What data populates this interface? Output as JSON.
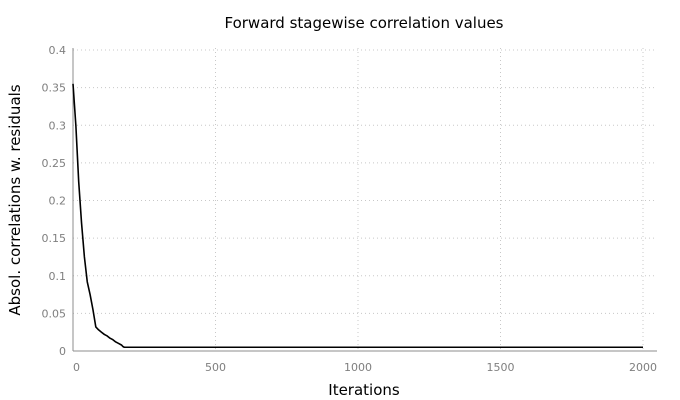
{
  "chart_data": {
    "type": "line",
    "title": "Forward stagewise correlation values",
    "xlabel": "Iterations",
    "ylabel": "Absol. correlations w. residuals",
    "xlim": [
      0,
      2000
    ],
    "ylim": [
      0,
      0.4
    ],
    "x_ticks": [
      0,
      500,
      1000,
      1500,
      2000
    ],
    "x_tick_labels": [
      "0",
      "500",
      "1000",
      "1500",
      "2000"
    ],
    "y_ticks": [
      0,
      0.05,
      0.1,
      0.15,
      0.2,
      0.25,
      0.3,
      0.35,
      0.4
    ],
    "y_tick_labels": [
      "0",
      "0.05",
      "0.1",
      "0.15",
      "0.2",
      "0.25",
      "0.3",
      "0.35",
      "0.4"
    ],
    "grid": true,
    "line_color": "#000000",
    "series": [
      {
        "x": [
          0,
          10,
          20,
          30,
          40,
          50,
          60,
          70,
          80,
          90,
          100,
          110,
          120,
          130,
          140,
          150,
          160,
          170,
          175,
          180,
          200,
          300,
          500,
          1000,
          1500,
          2000
        ],
        "y": [
          0.355,
          0.3,
          0.225,
          0.17,
          0.125,
          0.092,
          0.075,
          0.055,
          0.032,
          0.028,
          0.025,
          0.022,
          0.02,
          0.017,
          0.015,
          0.012,
          0.01,
          0.008,
          0.006,
          0.005,
          0.005,
          0.005,
          0.005,
          0.005,
          0.005,
          0.005
        ]
      }
    ]
  }
}
